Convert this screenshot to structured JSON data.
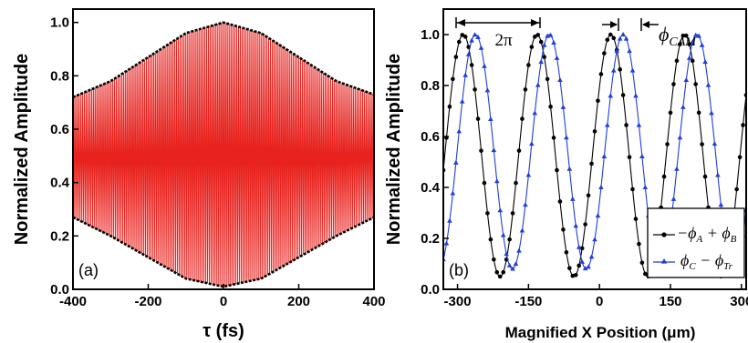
{
  "chart_data": [
    {
      "type": "line",
      "panel_label": "(a)",
      "xlabel": "τ (fs)",
      "ylabel": "Normalized Amplitude",
      "xlim": [
        -400,
        400
      ],
      "ylim": [
        0.0,
        1.05
      ],
      "x_ticks": [
        "-400",
        "-200",
        "0",
        "200",
        "400"
      ],
      "y_ticks": [
        "0.0",
        "0.2",
        "0.4",
        "0.6",
        "0.8",
        "1.0"
      ],
      "colors": {
        "fringes": "#e8231f",
        "envelope": "#000000"
      },
      "series": [
        {
          "role": "upper envelope",
          "x": [
            -400,
            -300,
            -200,
            -100,
            0,
            100,
            200,
            300,
            400
          ],
          "y": [
            0.72,
            0.78,
            0.87,
            0.96,
            1.0,
            0.96,
            0.87,
            0.78,
            0.73
          ]
        },
        {
          "role": "lower envelope",
          "x": [
            -400,
            -300,
            -200,
            -100,
            0,
            100,
            200,
            300,
            400
          ],
          "y": [
            0.27,
            0.2,
            0.12,
            0.04,
            0.01,
            0.04,
            0.12,
            0.2,
            0.27
          ]
        },
        {
          "role": "interference fringes",
          "fringe_count": 160,
          "fringe_period_fs": 5
        }
      ]
    },
    {
      "type": "line",
      "panel_label": "(b)",
      "xlabel": "Magnified X Position (μm)",
      "ylabel": "Normalized Amplitude",
      "xlim": [
        -330,
        310
      ],
      "ylim": [
        0.0,
        1.1
      ],
      "x_ticks": [
        "-300",
        "-150",
        "0",
        "150",
        "300"
      ],
      "y_ticks": [
        "0.0",
        "0.2",
        "0.4",
        "0.6",
        "0.8",
        "1.0"
      ],
      "annotations": {
        "period": "2π",
        "shift": "ϕ",
        "shift_sub": "CAM"
      },
      "series": [
        {
          "legend": [
            "−ϕ",
            "A",
            " + ϕ",
            "B"
          ],
          "color": "#000000",
          "marker": "circle",
          "x": [
            -288,
            -210,
            -132,
            -54,
            24,
            102,
            180,
            258,
            305
          ],
          "y": [
            1.0,
            0.05,
            1.0,
            0.05,
            1.0,
            0.05,
            1.0,
            0.05,
            0.6
          ]
        },
        {
          "legend": [
            "ϕ",
            "C",
            " − ϕ",
            "Tr"
          ],
          "color": "#1f3fd6",
          "marker": "triangle",
          "x": [
            -330,
            -262,
            -184,
            -106,
            -28,
            50,
            128,
            206,
            284
          ],
          "y": [
            0.25,
            1.0,
            0.08,
            1.0,
            0.08,
            1.0,
            0.08,
            1.0,
            0.08
          ]
        }
      ]
    }
  ]
}
